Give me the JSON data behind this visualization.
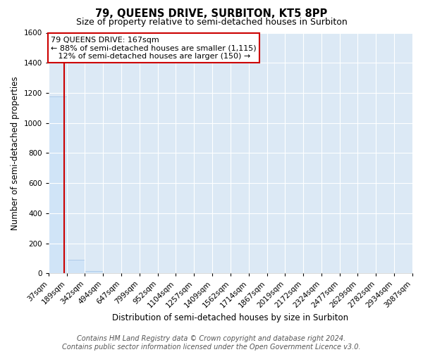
{
  "title": "79, QUEENS DRIVE, SURBITON, KT5 8PP",
  "subtitle": "Size of property relative to semi-detached houses in Surbiton",
  "xlabel": "Distribution of semi-detached houses by size in Surbiton",
  "ylabel": "Number of semi-detached properties",
  "bin_edges": [
    37,
    189,
    342,
    494,
    647,
    799,
    952,
    1104,
    1257,
    1409,
    1562,
    1714,
    1867,
    2019,
    2172,
    2324,
    2477,
    2629,
    2782,
    2934,
    3087
  ],
  "bar_heights": [
    1175,
    90,
    15,
    0,
    0,
    0,
    0,
    0,
    0,
    0,
    0,
    0,
    0,
    0,
    0,
    0,
    0,
    0,
    0,
    0
  ],
  "bar_color": "#d0e4f7",
  "bar_edge_color": "#a8c8e8",
  "property_size": 167,
  "property_line_color": "#cc0000",
  "annotation_line1": "79 QUEENS DRIVE: 167sqm",
  "annotation_line2": "← 88% of semi-detached houses are smaller (1,115)",
  "annotation_line3": "   12% of semi-detached houses are larger (150) →",
  "annotation_box_facecolor": "#ffffff",
  "annotation_box_edgecolor": "#cc0000",
  "ylim": [
    0,
    1600
  ],
  "yticks": [
    0,
    200,
    400,
    600,
    800,
    1000,
    1200,
    1400,
    1600
  ],
  "axes_facecolor": "#dce9f5",
  "fig_facecolor": "#ffffff",
  "grid_color": "#ffffff",
  "footer_line1": "Contains HM Land Registry data © Crown copyright and database right 2024.",
  "footer_line2": "Contains public sector information licensed under the Open Government Licence v3.0.",
  "title_fontsize": 10.5,
  "subtitle_fontsize": 9,
  "axis_label_fontsize": 8.5,
  "tick_fontsize": 7.5,
  "annotation_fontsize": 8,
  "footer_fontsize": 7
}
